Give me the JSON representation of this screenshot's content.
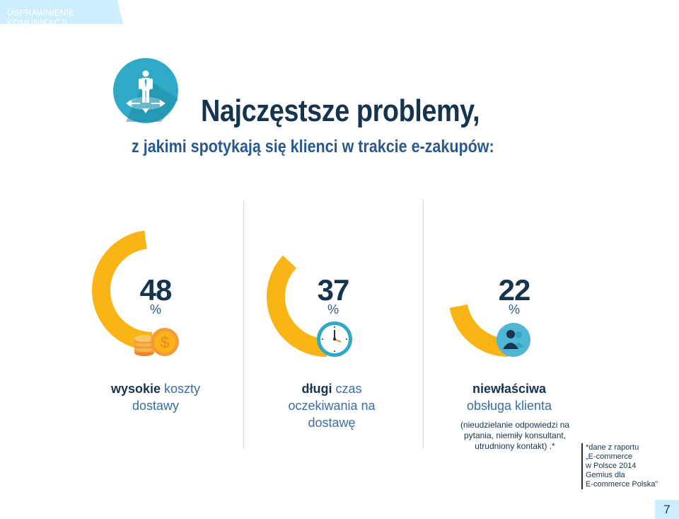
{
  "section_tab": {
    "label": "USPRAWNIENIE KOMUNIKACJI"
  },
  "header": {
    "title": "Najczęstsze problemy,",
    "subtitle": "z jakimi spotykają się klienci w trakcie e-zakupów:"
  },
  "colors": {
    "accent": "#fbb415",
    "navy": "#17344f",
    "blue": "#3a6ea5",
    "teal": "#2fa9c5",
    "tab": "#cfeefd"
  },
  "stats": [
    {
      "value": "48",
      "unit": "%",
      "fraction": 0.48,
      "label_bold": "wysokie",
      "label_rest": "koszty",
      "label_line2": "dostawy",
      "label_line3": "",
      "icon": "coins-dollar-icon"
    },
    {
      "value": "37",
      "unit": "%",
      "fraction": 0.37,
      "label_bold": "długi",
      "label_rest": "czas",
      "label_line2": "oczekiwania na",
      "label_line3": "dostawę",
      "icon": "clock-icon"
    },
    {
      "value": "22",
      "unit": "%",
      "fraction": 0.22,
      "label_bold": "niewłaściwa",
      "label_rest": "",
      "label_line2": "obsługa klienta",
      "label_line3": "",
      "icon": "customer-service-people-icon",
      "note": [
        "(nieudzielanie odpowiedzi na",
        "pytania, niemiły konsultant,",
        "utrudniony kontakt) .*"
      ]
    }
  ],
  "source_note": {
    "lines": [
      "*dane z raportu",
      "„E-commerce",
      "w Polsce 2014",
      "Gemius dla",
      "E-commerce Polska”"
    ]
  },
  "page_number": "7"
}
